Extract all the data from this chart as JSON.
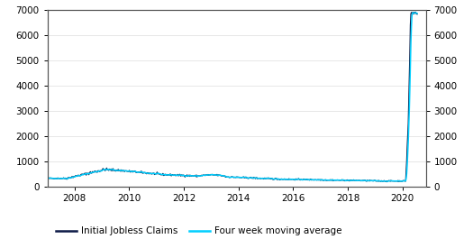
{
  "xlim_start": 2007.0,
  "xlim_end": 2020.85,
  "ylim": [
    0,
    7000
  ],
  "yticks": [
    0,
    1000,
    2000,
    3000,
    4000,
    5000,
    6000,
    7000
  ],
  "xticks": [
    2008,
    2010,
    2012,
    2014,
    2016,
    2018,
    2020
  ],
  "line1_color": "#0d1a47",
  "line2_color": "#00cfff",
  "legend_labels": [
    "Initial Jobless Claims",
    "Four week moving average"
  ],
  "background_color": "#ffffff",
  "grid_color": "#dddddd",
  "spine_color": "#555555",
  "tick_label_size": 7.5,
  "legend_fontsize": 7.5
}
